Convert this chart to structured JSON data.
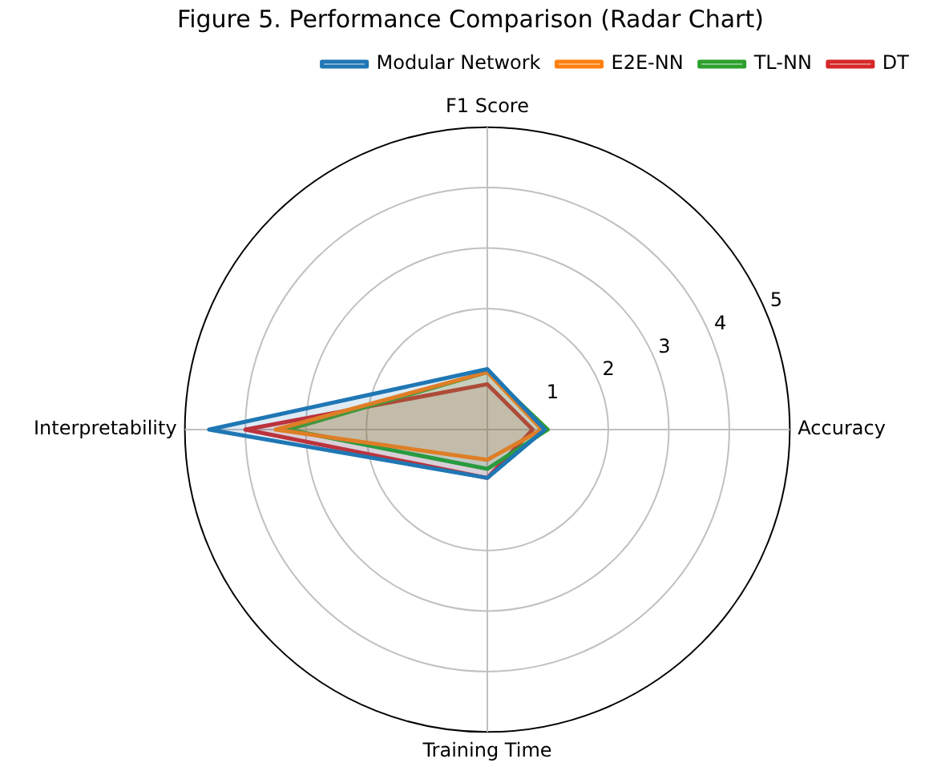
{
  "chart_data": {
    "type": "radar",
    "title": "Figure 5. Performance Comparison (Radar Chart)",
    "categories": [
      "F1 Score",
      "Accuracy",
      "Training Time",
      "Interpretability"
    ],
    "series": [
      {
        "name": "Modular Network",
        "color": "#1f77b4",
        "values": [
          1.0,
          0.95,
          0.8,
          4.6
        ]
      },
      {
        "name": "E2E-NN",
        "color": "#ff7f0e",
        "values": [
          0.95,
          0.9,
          0.5,
          3.5
        ]
      },
      {
        "name": "TL-NN",
        "color": "#2ca02c",
        "values": [
          0.95,
          1.0,
          0.65,
          3.3
        ]
      },
      {
        "name": "DT",
        "color": "#d62728",
        "values": [
          0.75,
          0.75,
          0.8,
          4.0
        ]
      }
    ],
    "ylim": [
      0,
      5
    ],
    "yticks": [
      1,
      2,
      3,
      4,
      5
    ],
    "grid": true,
    "legend": "top right",
    "marker": "none"
  }
}
